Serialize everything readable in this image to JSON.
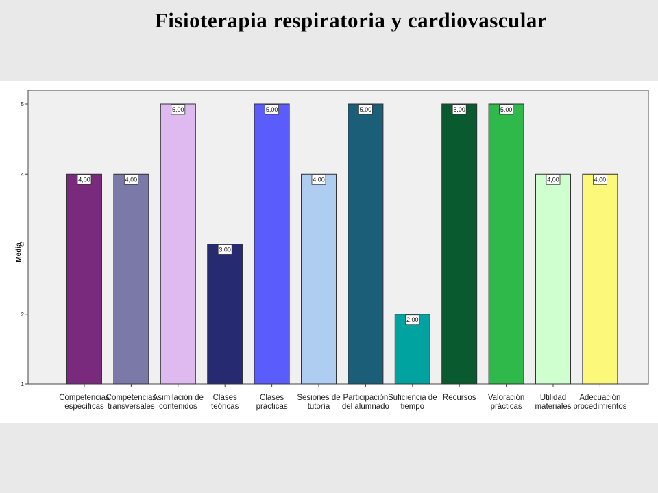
{
  "slide": {
    "title": "Fisioterapia respiratoria y cardiovascular"
  },
  "chart_data": {
    "type": "bar",
    "ylabel": "Media",
    "xlabel": "",
    "ylim": [
      1,
      5
    ],
    "yticks": [
      1,
      2,
      3,
      4,
      5
    ],
    "grid": false,
    "categories": [
      [
        "Competencias",
        "específicas"
      ],
      [
        "Competencias",
        "transversales"
      ],
      [
        "Asimilación de",
        "contenidos"
      ],
      [
        "Clases",
        "teóricas"
      ],
      [
        "Clases",
        "prácticas"
      ],
      [
        "Sesiones de",
        "tutoría"
      ],
      [
        "Participación",
        "del alumnado"
      ],
      [
        "Suficiencia de",
        "tiempo"
      ],
      [
        "Recursos"
      ],
      [
        "Valoración",
        "prácticas"
      ],
      [
        "Utilidad",
        "materiales"
      ],
      [
        "Adecuación",
        "procedimientos"
      ]
    ],
    "values": [
      4,
      4,
      5,
      3,
      5,
      4,
      5,
      2,
      5,
      5,
      4,
      4
    ],
    "value_labels": [
      "4,00",
      "4,00",
      "5,00",
      "3,00",
      "5,00",
      "4,00",
      "5,00",
      "2,00",
      "5,00",
      "5,00",
      "4,00",
      "4,00"
    ],
    "colors": [
      "#7a2a7c",
      "#7a79a8",
      "#debaf0",
      "#262a70",
      "#5b5cfc",
      "#aecdf0",
      "#1b5e78",
      "#01a3a1",
      "#0a5a30",
      "#2fb94a",
      "#cfffce",
      "#fbf87a"
    ]
  }
}
